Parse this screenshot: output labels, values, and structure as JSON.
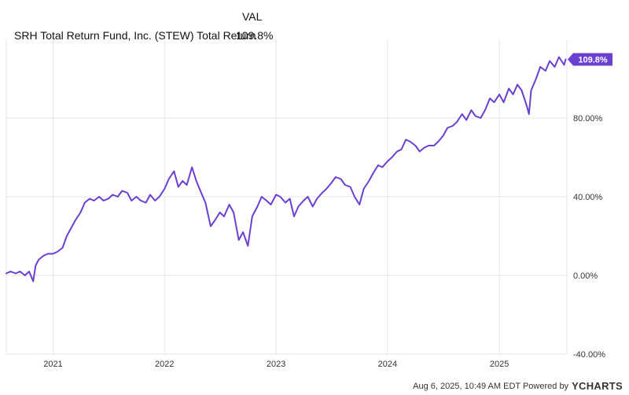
{
  "legend": {
    "column_header": "VAL",
    "series_label": "SRH Total Return Fund, Inc. (STEW) Total Return",
    "series_value": "109.8%"
  },
  "footer": {
    "timestamp": "Aug 6, 2025, 10:49 AM EDT Powered by",
    "brand": "YCHARTS"
  },
  "colors": {
    "series": "#6a3fd1",
    "grid": "#e6e6e6",
    "axis_text": "#333333"
  },
  "chart_data": {
    "type": "line",
    "title": "",
    "xlabel": "",
    "ylabel": "",
    "x_ticks": [
      "2021",
      "2022",
      "2023",
      "2024",
      "2025"
    ],
    "y_ticks": [
      "80.00%",
      "40.00%",
      "0.00%",
      "-40.00%"
    ],
    "ylim": [
      -40,
      120
    ],
    "grid": true,
    "end_label": "109.8%",
    "series": [
      {
        "name": "SRH Total Return Fund, Inc. (STEW) Total Return",
        "x": [
          "2020-08-01",
          "2020-08-15",
          "2020-09-01",
          "2020-09-15",
          "2020-10-01",
          "2020-10-15",
          "2020-10-28",
          "2020-11-05",
          "2020-11-15",
          "2020-12-01",
          "2020-12-15",
          "2021-01-01",
          "2021-01-15",
          "2021-02-01",
          "2021-02-15",
          "2021-03-01",
          "2021-03-15",
          "2021-04-01",
          "2021-04-15",
          "2021-05-01",
          "2021-05-15",
          "2021-06-01",
          "2021-06-15",
          "2021-07-01",
          "2021-07-15",
          "2021-08-01",
          "2021-08-15",
          "2021-09-01",
          "2021-09-15",
          "2021-10-01",
          "2021-10-15",
          "2021-11-01",
          "2021-11-15",
          "2021-12-01",
          "2021-12-15",
          "2022-01-01",
          "2022-01-15",
          "2022-02-01",
          "2022-02-15",
          "2022-03-01",
          "2022-03-15",
          "2022-04-01",
          "2022-04-15",
          "2022-05-01",
          "2022-05-15",
          "2022-06-01",
          "2022-06-15",
          "2022-07-01",
          "2022-07-15",
          "2022-08-01",
          "2022-08-15",
          "2022-09-01",
          "2022-09-15",
          "2022-10-01",
          "2022-10-15",
          "2022-11-01",
          "2022-11-15",
          "2022-12-01",
          "2022-12-15",
          "2023-01-01",
          "2023-01-15",
          "2023-02-01",
          "2023-02-15",
          "2023-03-01",
          "2023-03-15",
          "2023-04-01",
          "2023-04-15",
          "2023-05-01",
          "2023-05-15",
          "2023-06-01",
          "2023-06-15",
          "2023-07-01",
          "2023-07-15",
          "2023-08-01",
          "2023-08-15",
          "2023-09-01",
          "2023-09-15",
          "2023-10-01",
          "2023-10-15",
          "2023-11-01",
          "2023-11-15",
          "2023-12-01",
          "2023-12-15",
          "2024-01-01",
          "2024-01-15",
          "2024-02-01",
          "2024-02-15",
          "2024-03-01",
          "2024-03-15",
          "2024-04-01",
          "2024-04-15",
          "2024-05-01",
          "2024-05-15",
          "2024-06-01",
          "2024-06-15",
          "2024-07-01",
          "2024-07-15",
          "2024-08-01",
          "2024-08-15",
          "2024-09-01",
          "2024-09-15",
          "2024-10-01",
          "2024-10-15",
          "2024-11-01",
          "2024-11-15",
          "2024-12-01",
          "2024-12-15",
          "2025-01-01",
          "2025-01-15",
          "2025-02-01",
          "2025-02-15",
          "2025-03-01",
          "2025-03-15",
          "2025-04-01",
          "2025-04-08",
          "2025-04-15",
          "2025-05-01",
          "2025-05-15",
          "2025-06-01",
          "2025-06-15",
          "2025-07-01",
          "2025-07-15",
          "2025-08-01",
          "2025-08-06"
        ],
        "values": [
          1,
          2,
          1,
          2,
          0,
          2,
          -3,
          5,
          8,
          10,
          11,
          11,
          12,
          14,
          20,
          24,
          28,
          32,
          37,
          39,
          38,
          40,
          38,
          39,
          41,
          40,
          43,
          42,
          38,
          40,
          38,
          37,
          41,
          38,
          40,
          44,
          49,
          53,
          45,
          48,
          46,
          55,
          48,
          42,
          37,
          25,
          28,
          32,
          30,
          36,
          32,
          18,
          22,
          15,
          30,
          35,
          40,
          38,
          36,
          41,
          40,
          37,
          39,
          30,
          35,
          38,
          40,
          35,
          39,
          42,
          44,
          47,
          50,
          49,
          46,
          45,
          40,
          36,
          44,
          48,
          52,
          56,
          55,
          58,
          60,
          63,
          64,
          69,
          68,
          66,
          63,
          65,
          66,
          66,
          68,
          71,
          75,
          76,
          78,
          82,
          79,
          84,
          81,
          80,
          84,
          90,
          88,
          92,
          88,
          95,
          92,
          97,
          94,
          86,
          82,
          94,
          100,
          106,
          104,
          109,
          106,
          111,
          107,
          109.8
        ]
      }
    ]
  }
}
